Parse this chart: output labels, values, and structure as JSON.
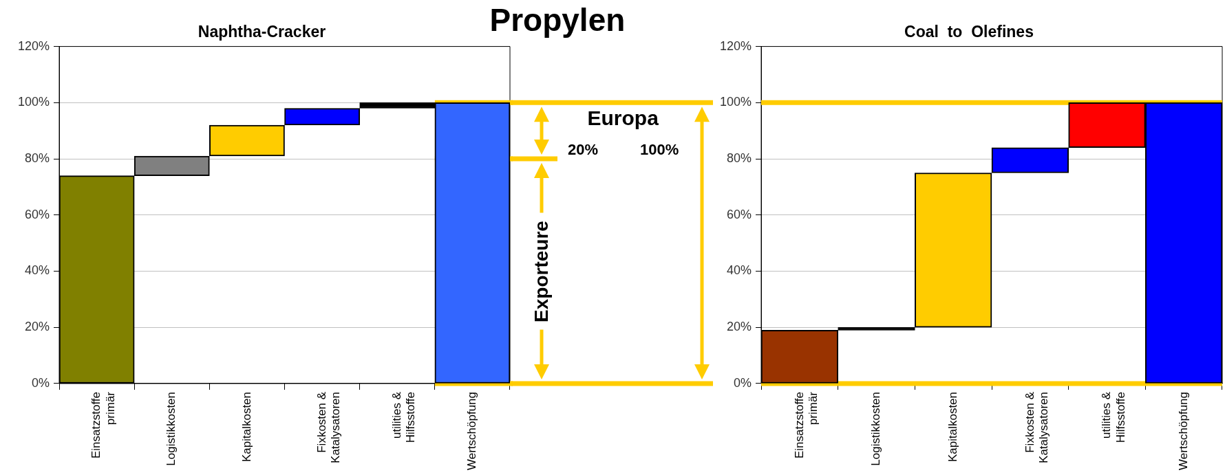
{
  "chart_data": [
    {
      "type": "bar",
      "title": "Naphtha-Cracker",
      "categories": [
        "Einsatzstoffe primär",
        "Logistikkosten",
        "Kapitalkosten",
        "Fixkosten & Katalysatoren",
        "utilities & Hilfsstoffe",
        "Wertschöpfung"
      ],
      "values": [
        74,
        7,
        11,
        6,
        2,
        100
      ],
      "base": [
        0,
        74,
        81,
        92,
        98,
        0
      ],
      "colors": [
        "#808000",
        "#808080",
        "#ffcc00",
        "#0000ff",
        "#000000",
        "#3366ff"
      ],
      "ylim": [
        0,
        120
      ],
      "yticks": [
        {
          "value": 0,
          "label": "0%"
        },
        {
          "value": 20,
          "label": "20%"
        },
        {
          "value": 40,
          "label": "40%"
        },
        {
          "value": 60,
          "label": "60%"
        },
        {
          "value": 80,
          "label": "80%"
        },
        {
          "value": 100,
          "label": "100%"
        },
        {
          "value": 120,
          "label": "120%"
        }
      ],
      "grid": "y",
      "legend": false,
      "ref_lines": [
        {
          "axis": "y",
          "value": 100,
          "color": "#ffcc00"
        },
        {
          "axis": "y",
          "value": 80,
          "color": "#ffcc00"
        },
        {
          "axis": "y",
          "value": 0,
          "color": "#ffcc00"
        }
      ],
      "annotations": [
        "Propylen",
        "Europa",
        "20%",
        "100%",
        "Exporteure"
      ]
    },
    {
      "type": "bar",
      "title": "Coal  to  Olefines",
      "categories": [
        "Einsatzstoffe primär",
        "Logistikkosten",
        "Kapitalkosten",
        "Fixkosten & Katalysatoren",
        "utilities & Hilfsstoffe",
        "Wertschöpfung"
      ],
      "values": [
        19,
        1,
        55,
        9,
        16,
        100
      ],
      "base": [
        0,
        19,
        20,
        75,
        84,
        0
      ],
      "colors": [
        "#993300",
        "#000000",
        "#ffcc00",
        "#0000ff",
        "#ff0000",
        "#0000ff"
      ],
      "ylim": [
        0,
        120
      ],
      "yticks": [
        {
          "value": 0,
          "label": "0%"
        },
        {
          "value": 20,
          "label": "20%"
        },
        {
          "value": 40,
          "label": "40%"
        },
        {
          "value": 60,
          "label": "60%"
        },
        {
          "value": 80,
          "label": "80%"
        },
        {
          "value": 100,
          "label": "100%"
        },
        {
          "value": 120,
          "label": "120%"
        }
      ],
      "grid": "y",
      "legend": false,
      "ref_lines": [
        {
          "axis": "y",
          "value": 100,
          "color": "#ffcc00"
        },
        {
          "axis": "y",
          "value": 0,
          "color": "#ffcc00"
        }
      ]
    }
  ]
}
